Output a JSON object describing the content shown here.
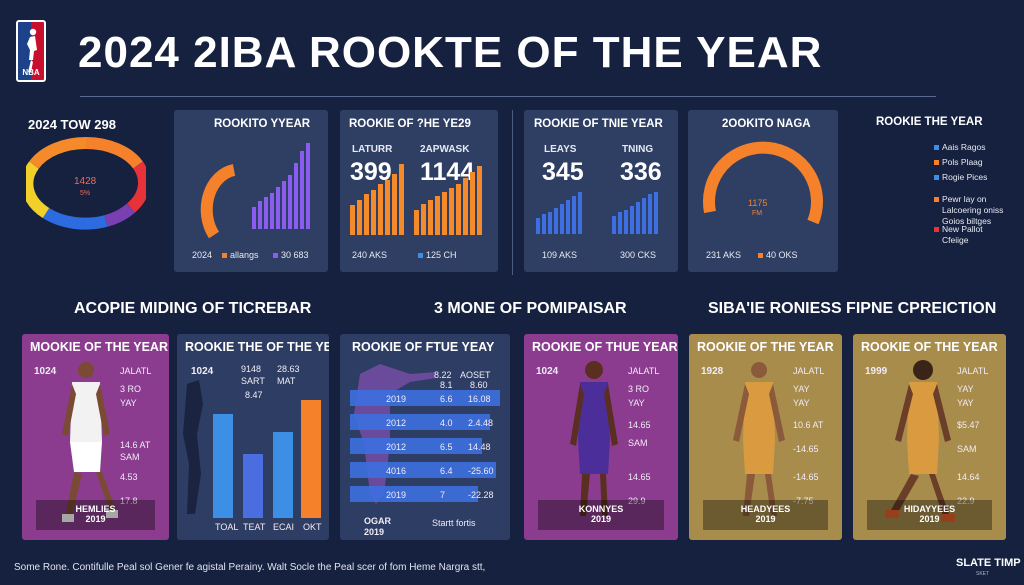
{
  "header": {
    "title": "2024 2IBA ROOKTE OF THE YEAR",
    "logo_text": "NBA"
  },
  "top": {
    "donut": {
      "caption": "2024 TOW 298",
      "center_value": "1428",
      "center_sub": "5%"
    },
    "panel1": {
      "title": "ROOKITO YYEAR",
      "left_footer": "2024",
      "mid_footer": "allangs",
      "right_footer": "30 683"
    },
    "panel2": {
      "title": "ROOKIE OF ?HE YE29",
      "label_a": "LATURR",
      "label_b": "2APWASK",
      "value_a": "399",
      "value_b": "1144",
      "footer_a": "240 AKS",
      "footer_b": "125 CH"
    },
    "panel3": {
      "title": "ROOKIE OF TNIE YEAR",
      "label_a": "LEAYS",
      "label_b": "TNING",
      "value_a": "345",
      "value_b": "336",
      "footer_a": "109 AKS",
      "footer_b": "300 CKS"
    },
    "panel4": {
      "title": "2OOKITO NAGA",
      "center_value": "1175",
      "center_sub": "FM",
      "footer_a": "231 AKS",
      "footer_b": "40 OKS"
    },
    "legend": {
      "title": "ROOKIE THE YEAR",
      "items": [
        "Aais Ragos",
        "Pols Plaag",
        "Rogie Pices",
        "Pewr lay on",
        "Lalcoering oniss",
        "Goios biltges",
        "New Pallot",
        "Cfeiige"
      ]
    }
  },
  "sections": {
    "left": "ACOPIE MIDING OF TICREBAR",
    "mid": "3 MONE OF POMIPAISAR",
    "right": "SIBA'IE RONIESS FIPNE CPREICTION"
  },
  "cards": {
    "c1": {
      "title": "MOOKIE OF THE YEAR",
      "year": "1024",
      "stats": [
        "JALATL",
        "3 RO",
        "YAY",
        "14.6 AT",
        "SAM",
        "4.53",
        "17.8"
      ],
      "name": "HEMLIES",
      "name_year": "2019"
    },
    "c2": {
      "title": "ROOKIE THE OF THE YEAR",
      "year": "1024",
      "col_a": [
        "9148",
        "SART",
        "8.47"
      ],
      "col_b": [
        "28.63",
        "MAT"
      ],
      "bars": [
        "TOAL",
        "TEAT",
        "ECAI",
        "OKT"
      ]
    },
    "c3": {
      "title": "ROOKIE OF FTUE YEAY",
      "head": [
        "8.22",
        "AOSET",
        "8.1",
        "8.60"
      ],
      "rows": [
        [
          "2019",
          "6.6",
          "16.08"
        ],
        [
          "2012",
          "4.0",
          "2.4.48"
        ],
        [
          "2012",
          "6.5",
          "14.48"
        ],
        [
          "4016",
          "6.4",
          "-25.60"
        ],
        [
          "2019",
          "7",
          "-22.28"
        ]
      ],
      "footer_a": "OGAR",
      "footer_b": "Startt fortis",
      "footer_year": "2019"
    },
    "c4": {
      "title": "ROOKIE OF THUE YEAR",
      "year": "1024",
      "stats": [
        "JALATL",
        "3 RO",
        "YAY",
        "14.65",
        "SAM",
        "14.65",
        "29.9"
      ],
      "name": "KONNYES",
      "name_year": "2019"
    },
    "c5": {
      "title": "ROOKIE OF THE YEAR",
      "year": "1928",
      "stats": [
        "JALATL",
        "YAY",
        "YAY",
        "10.6 AT",
        "-14.65",
        "-14.65",
        "-7.75"
      ],
      "name": "HEADYEES",
      "name_year": "2019"
    },
    "c6": {
      "title": "ROOKIE OF THE YEAR",
      "year": "1999",
      "stats": [
        "JALATL",
        "YAY",
        "YAY",
        "$5.47",
        "SAM",
        "14.64",
        "22.9"
      ],
      "name": "HIDAYYEES",
      "name_year": "2019"
    }
  },
  "footer": {
    "note": "Some Rone. Contifulle Peal sol Gener fe agistal Perainy. Walt Socle the Peal scer of fom Heme Nargra stt,",
    "brand": "SLATE TIMP",
    "brand_sub": "SKET"
  },
  "colors": {
    "bg": "#16213f",
    "panel": "#2f3f64",
    "orange": "#f5822a",
    "purple": "#8a5cf0",
    "blue": "#3d8fe6",
    "red": "#e8323a",
    "yellow": "#f2d02a",
    "card_purple": "#8b3c8f",
    "card_navy": "#2e3d63",
    "card_gold": "#a78c4c"
  }
}
